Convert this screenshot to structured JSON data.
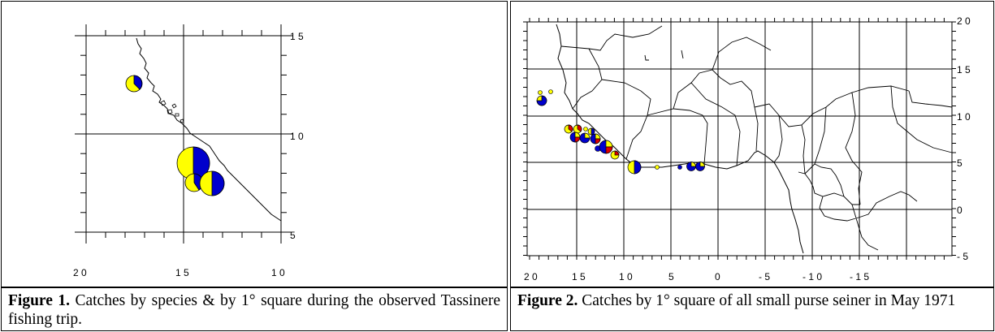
{
  "figure1": {
    "caption_label": "Figure 1.",
    "caption_text": " Catches by species & by 1° square during the observed Tassinere fishing trip.",
    "longitude_labels": [
      "2 0",
      "1 5",
      "1 0"
    ],
    "latitude_labels": [
      "1 5",
      "1 0",
      "5"
    ]
  },
  "figure2": {
    "caption_label": "Figure 2.",
    "caption_text": " Catches by 1° square of all small purse seiner in May 1971",
    "longitude_labels": [
      "2 0",
      "1 5",
      "1 0",
      "5",
      "0",
      "- 5",
      "- 1 0",
      "- 1 5"
    ],
    "latitude_labels": [
      "2 0",
      "1 5",
      "1 0",
      "5",
      "0",
      "- 5"
    ]
  },
  "colors": {
    "species_a": "#ffff00",
    "species_b": "#0000cc",
    "species_c": "#dd0000",
    "coastline": "#000000",
    "grid": "#000000"
  }
}
